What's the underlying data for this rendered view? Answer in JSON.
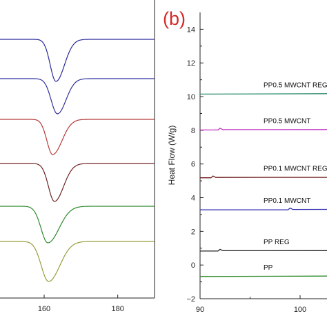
{
  "chart_data": [
    {
      "type": "line",
      "panel": "a",
      "xlabel": "",
      "ylabel": "",
      "xlim": [
        148,
        190
      ],
      "x_ticks": [
        160,
        180
      ],
      "series": [
        {
          "color": "#2a2a9c",
          "baseline": 57,
          "peak_x": 163.2,
          "depth": 61,
          "w_left": 2.2,
          "w_right": 3.3
        },
        {
          "color": "#30309e",
          "baseline": 114,
          "peak_x": 163.6,
          "depth": 51,
          "w_left": 2.4,
          "w_right": 3.3
        },
        {
          "color": "#b63a3a",
          "baseline": 173,
          "peak_x": 162.3,
          "depth": 51,
          "w_left": 2.2,
          "w_right": 3.6
        },
        {
          "color": "#6e2121",
          "baseline": 237,
          "peak_x": 162.8,
          "depth": 55,
          "w_left": 2.3,
          "w_right": 3.5
        },
        {
          "color": "#2d8a2d",
          "baseline": 299,
          "peak_x": 161.0,
          "depth": 53,
          "w_left": 2.6,
          "w_right": 4.3
        },
        {
          "color": "#9a9c3a",
          "baseline": 350,
          "peak_x": 161.2,
          "depth": 58,
          "w_left": 2.8,
          "w_right": 4.3
        }
      ]
    },
    {
      "type": "line",
      "panel": "b",
      "panel_label": "(b)",
      "xlabel": "",
      "ylabel": "Heat Flow (W/g)",
      "xlim": [
        90,
        110
      ],
      "ylim": [
        -2,
        15
      ],
      "x_ticks": [
        90,
        100
      ],
      "y_ticks": [
        -2,
        0,
        2,
        4,
        6,
        8,
        10,
        12,
        14
      ],
      "series": [
        {
          "name": "PP0.5 MWCNT REG",
          "color": "#2a8a6a",
          "y": 10.15,
          "bump_x": null
        },
        {
          "name": "PP0.5 MWCNT",
          "color": "#c030c0",
          "y": 8.02,
          "bump_x": 92.0
        },
        {
          "name": "PP0.1 MWCNT REG",
          "color": "#6e1a1a",
          "y": 5.18,
          "bump_x": 91.3
        },
        {
          "name": "PP0.1 MWCNT",
          "color": "#2a2ab0",
          "y": 3.28,
          "bump_x": 99.0
        },
        {
          "name": "PP REG",
          "color": "#222222",
          "y": 0.83,
          "bump_x": 92.0
        },
        {
          "name": "PP",
          "color": "#2d8a2d",
          "y": -0.68,
          "bump_x": null
        }
      ]
    }
  ]
}
